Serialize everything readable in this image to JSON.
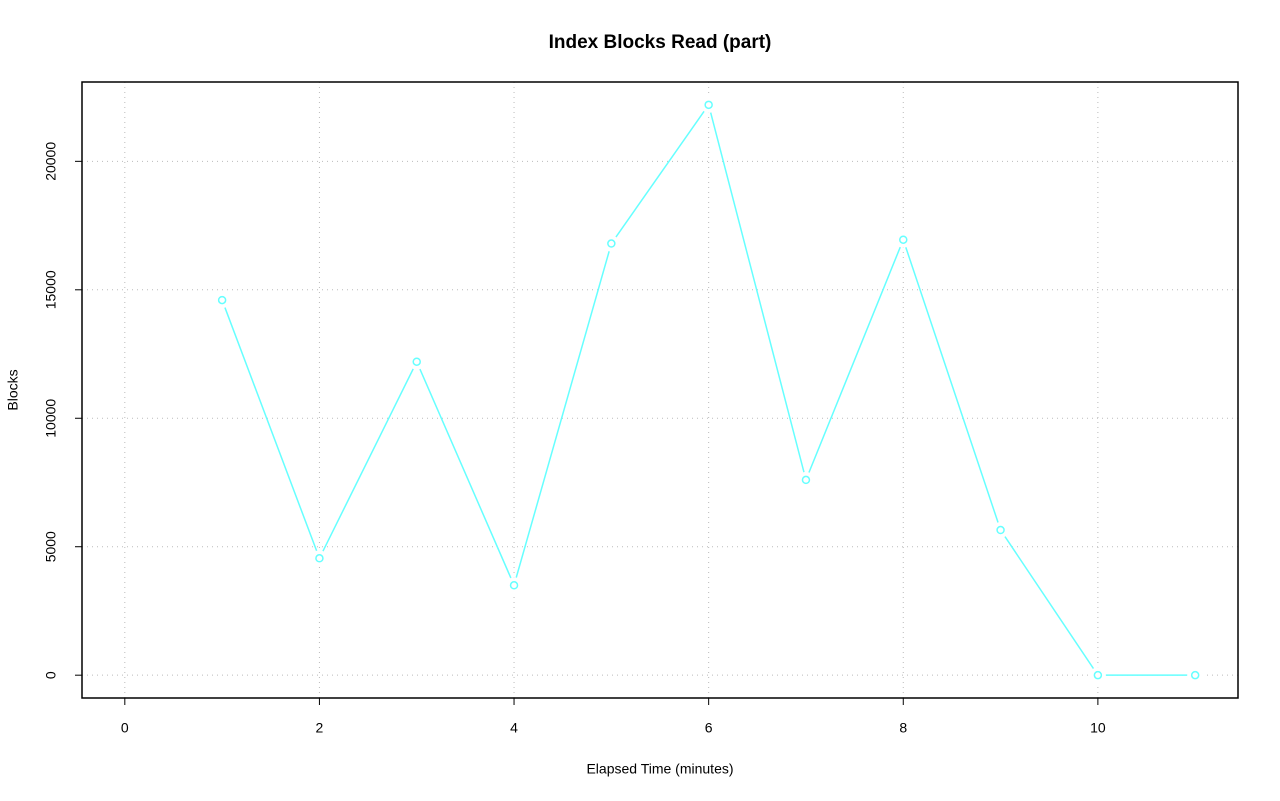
{
  "chart_data": {
    "type": "line",
    "title": "Index Blocks Read (part)",
    "xlabel": "Elapsed Time (minutes)",
    "ylabel": "Blocks",
    "x": [
      1,
      2,
      3,
      4,
      5,
      6,
      7,
      8,
      9,
      10,
      11
    ],
    "series": [
      {
        "name": "Blocks",
        "color": "#66ffff",
        "values": [
          14600,
          4550,
          12200,
          3500,
          16800,
          22200,
          7600,
          16950,
          5650,
          0,
          0
        ]
      }
    ],
    "xlim": [
      -0.44,
      11.44
    ],
    "xticks": [
      0,
      2,
      4,
      6,
      8,
      10
    ],
    "ylim": [
      -888,
      23088
    ],
    "yticks": [
      0,
      5000,
      10000,
      15000,
      20000
    ],
    "grid": true,
    "legend": false
  }
}
